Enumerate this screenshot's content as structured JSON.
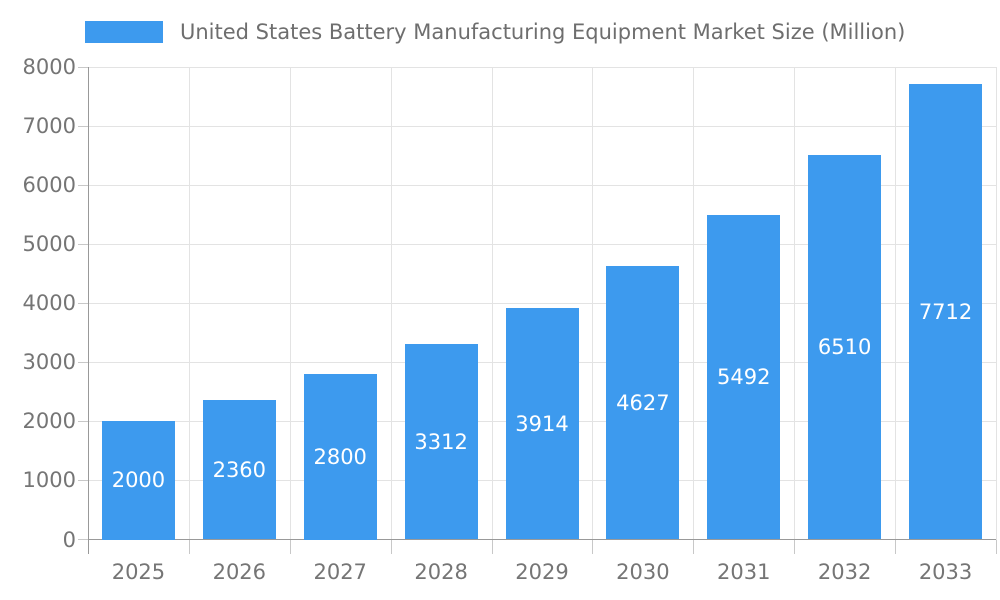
{
  "legend": {
    "label": "United States Battery Manufacturing Equipment Market Size (Million)"
  },
  "chart_data": {
    "type": "bar",
    "title": "United States Battery Manufacturing Equipment Market Size (Million)",
    "categories": [
      "2025",
      "2026",
      "2027",
      "2028",
      "2029",
      "2030",
      "2031",
      "2032",
      "2033"
    ],
    "values": [
      2000,
      2360,
      2800,
      3312,
      3914,
      4627,
      5492,
      6510,
      7712
    ],
    "xlabel": "",
    "ylabel": "",
    "ylim": [
      0,
      8000
    ],
    "yticks": [
      0,
      1000,
      2000,
      3000,
      4000,
      5000,
      6000,
      7000,
      8000
    ],
    "grid": true,
    "legend_position": "top-left",
    "value_label_position": "inside-middle"
  },
  "colors": {
    "bar": "#3D9AEE",
    "bar_label": "#ffffff",
    "axis_line": "#999999",
    "gridline": "#e3e3e3",
    "tick": "#c8c8c8",
    "tick_label": "#757575",
    "legend_text": "#6e6e6e",
    "background": "#ffffff"
  }
}
